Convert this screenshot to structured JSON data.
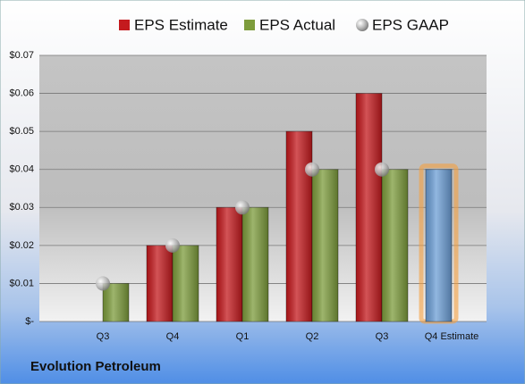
{
  "chart_data": {
    "type": "bar",
    "footer": "Evolution Petroleum",
    "categories": [
      "Q3",
      "Q4",
      "Q1",
      "Q2",
      "Q3",
      "Q4 Estimate"
    ],
    "series": [
      {
        "name": "EPS Estimate",
        "color": "#c41a1e",
        "values": [
          null,
          0.02,
          0.03,
          0.05,
          0.06,
          0.04
        ],
        "highlight_color": "#6d9fd6"
      },
      {
        "name": "EPS Actual",
        "color": "#7d9c3c",
        "values": [
          0.01,
          0.02,
          0.03,
          0.04,
          0.04,
          null
        ]
      },
      {
        "name": "EPS GAAP",
        "color": "#a8a8a8",
        "marker": "circle",
        "values": [
          0.01,
          0.02,
          0.03,
          0.04,
          0.04,
          null
        ]
      }
    ],
    "ylim": [
      0,
      0.07
    ],
    "yticks": [
      {
        "value": 0,
        "label": "$-"
      },
      {
        "value": 0.01,
        "label": "$0.01"
      },
      {
        "value": 0.02,
        "label": "$0.02"
      },
      {
        "value": 0.03,
        "label": "$0.03"
      },
      {
        "value": 0.04,
        "label": "$0.04"
      },
      {
        "value": 0.05,
        "label": "$0.05"
      },
      {
        "value": 0.06,
        "label": "$0.06"
      },
      {
        "value": 0.07,
        "label": "$0.07"
      }
    ],
    "grid": true,
    "legend": "top"
  }
}
